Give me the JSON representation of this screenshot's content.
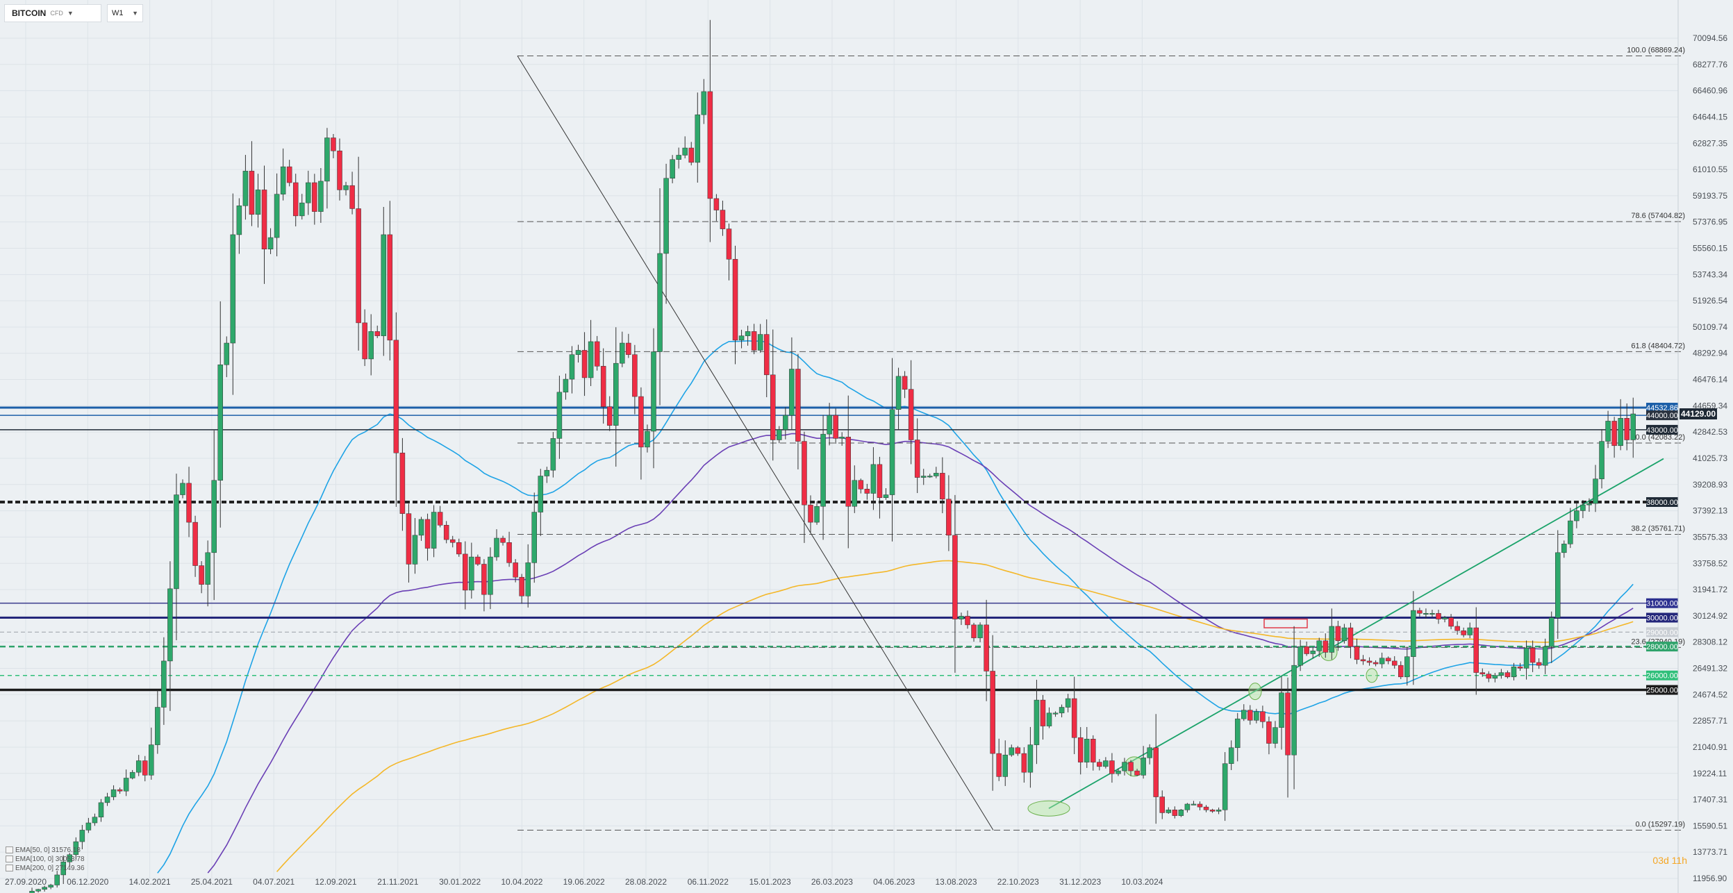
{
  "toolbar": {
    "symbol": "BITCOIN",
    "symbol_type": "CFD",
    "timeframe": "W1"
  },
  "timer": "03d 11h",
  "indicators": [
    {
      "label": "EMA[50,  0]  31576.18",
      "color": "#1ea3e6"
    },
    {
      "label": "EMA[100,  0]  30053.78",
      "color": "#6a3fb5"
    },
    {
      "label": "EMA[200,  0]  27149.36",
      "color": "#f4b728"
    }
  ],
  "colors": {
    "up": "#2ea86b",
    "down": "#ef2d45",
    "background": "#ecf0f3",
    "grid": "#dde3e8"
  },
  "chart_data": {
    "type": "candlestick",
    "title": "",
    "xlabel": "",
    "ylabel": "",
    "ylim": [
      11956.9,
      70094.56
    ],
    "y_ticks": [
      "70094.56",
      "68277.76",
      "66460.96",
      "64644.15",
      "62827.35",
      "61010.55",
      "59193.75",
      "57376.95",
      "55560.15",
      "53743.34",
      "51926.54",
      "50109.74",
      "48292.94",
      "46476.14",
      "44659.34",
      "42842.53",
      "41025.73",
      "39208.93",
      "37392.13",
      "35575.33",
      "33758.52",
      "31941.72",
      "30124.92",
      "28308.12",
      "26491.32",
      "24674.52",
      "22857.71",
      "21040.91",
      "19224.11",
      "17407.31",
      "15590.51",
      "13773.71",
      "11956.90"
    ],
    "x_ticks": [
      "27.09.2020",
      "06.12.2020",
      "14.02.2021",
      "25.04.2021",
      "04.07.2021",
      "12.09.2021",
      "21.11.2021",
      "30.01.2022",
      "10.04.2022",
      "19.06.2022",
      "28.08.2022",
      "06.11.2022",
      "15.01.2023",
      "26.03.2023",
      "04.06.2023",
      "13.08.2023",
      "22.10.2023",
      "31.12.2023",
      "10.03.2024"
    ],
    "closes": [
      10720,
      11080,
      11200,
      11350,
      11500,
      12200,
      13100,
      13600,
      14500,
      15300,
      15800,
      16200,
      17200,
      17600,
      18100,
      18000,
      18900,
      19300,
      20100,
      19100,
      21200,
      23800,
      27000,
      32000,
      38500,
      39300,
      36600,
      33600,
      32300,
      34500,
      39500,
      47500,
      49000,
      56500,
      58500,
      60900,
      57900,
      59600,
      55500,
      56300,
      59300,
      61200,
      60100,
      57800,
      58700,
      60100,
      58100,
      60200,
      63200,
      62300,
      59600,
      59900,
      58300,
      50400,
      47900,
      49800,
      49500,
      56500,
      49200,
      41400,
      37200,
      33700,
      35700,
      36800,
      34800,
      37300,
      36400,
      35400,
      35200,
      34400,
      31900,
      34200,
      33700,
      31600,
      34200,
      35500,
      35200,
      33800,
      32800,
      31500,
      33800,
      37300,
      39800,
      40200,
      42400,
      45600,
      46500,
      48200,
      48500,
      46600,
      49100,
      47400,
      44600,
      43300,
      47600,
      49000,
      48200,
      45300,
      41800,
      42900,
      48400,
      55200,
      60400,
      61700,
      62000,
      62500,
      61500,
      64800,
      66400,
      59000,
      58200,
      56900,
      54800,
      49200,
      49500,
      49800,
      48500,
      49600,
      46800,
      42300,
      43000,
      44000,
      47200,
      42200,
      37800,
      36600,
      37700,
      42700,
      44000,
      42400,
      42500,
      37700,
      39500,
      38900,
      38600,
      40600,
      38300,
      38500,
      44400,
      46700,
      45800,
      42300,
      39700,
      39800,
      39800,
      40000,
      38200,
      35700,
      29900,
      30100,
      29500,
      28600,
      29500,
      26300,
      20600,
      19000,
      20500,
      21000,
      20600,
      19300,
      21200,
      24300,
      22500,
      23400,
      23400,
      23800,
      24400,
      21700,
      20000,
      21600,
      20000,
      19700,
      20100,
      19200,
      19400,
      20000,
      19400,
      19100,
      20300,
      21000,
      17600,
      16500,
      16700,
      16300,
      16700,
      17100,
      17100,
      16900,
      16700,
      16600,
      16700,
      19900,
      21000,
      23000,
      23600,
      22900,
      23500,
      22800,
      21300,
      22400,
      24800,
      20500,
      26700,
      28000,
      27500,
      27700,
      28400,
      27600,
      29400,
      28400,
      29300,
      28000,
      27100,
      27000,
      26900,
      26800,
      27200,
      27000,
      26700,
      25900,
      27300,
      30500,
      30300,
      30300,
      30300,
      29900,
      30000,
      29400,
      29100,
      28800,
      29300,
      26200,
      26100,
      25800,
      26000,
      26200,
      25900,
      26600,
      26500,
      27900,
      26900,
      26700,
      28000,
      30000,
      34500,
      35100,
      36700,
      37400,
      37800,
      37900,
      39600,
      42200,
      43600,
      41900,
      43800,
      42300,
      44100
    ]
  }
}
